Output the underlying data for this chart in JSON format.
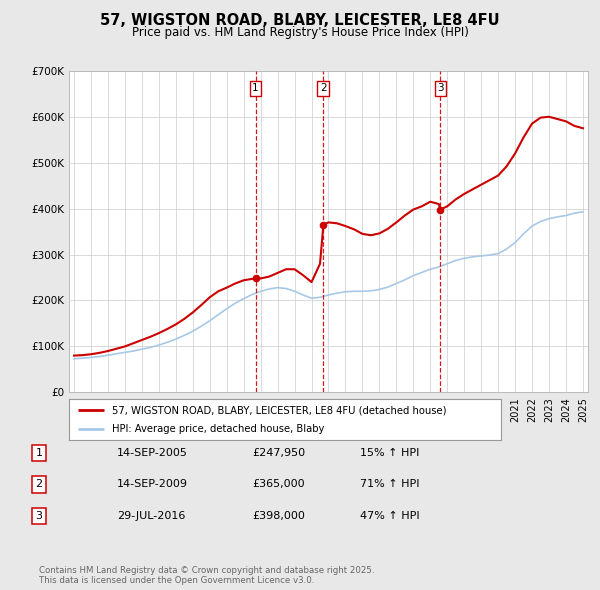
{
  "title": "57, WIGSTON ROAD, BLABY, LEICESTER, LE8 4FU",
  "subtitle": "Price paid vs. HM Land Registry's House Price Index (HPI)",
  "background_color": "#e8e8e8",
  "plot_bg_color": "#ffffff",
  "x_start_year": 1995,
  "x_end_year": 2025,
  "y_min": 0,
  "y_max": 700000,
  "y_ticks": [
    0,
    100000,
    200000,
    300000,
    400000,
    500000,
    600000,
    700000
  ],
  "y_tick_labels": [
    "£0",
    "£100K",
    "£200K",
    "£300K",
    "£400K",
    "£500K",
    "£600K",
    "£700K"
  ],
  "grid_color": "#cccccc",
  "hpi_line_color": "#a8c8e8",
  "price_line_color": "#cc0000",
  "vline_color": "#cc0000",
  "sale_markers": [
    {
      "year": 2005.7,
      "price": 247950,
      "label": "1"
    },
    {
      "year": 2009.7,
      "price": 365000,
      "label": "2"
    },
    {
      "year": 2016.6,
      "price": 398000,
      "label": "3"
    }
  ],
  "legend_entries": [
    {
      "label": "57, WIGSTON ROAD, BLABY, LEICESTER, LE8 4FU (detached house)",
      "color": "#cc0000"
    },
    {
      "label": "HPI: Average price, detached house, Blaby",
      "color": "#a8c8e8"
    }
  ],
  "table_rows": [
    {
      "num": "1",
      "date": "14-SEP-2005",
      "price": "£247,950",
      "hpi": "15% ↑ HPI"
    },
    {
      "num": "2",
      "date": "14-SEP-2009",
      "price": "£365,000",
      "hpi": "71% ↑ HPI"
    },
    {
      "num": "3",
      "date": "29-JUL-2016",
      "price": "£398,000",
      "hpi": "47% ↑ HPI"
    }
  ],
  "footer": "Contains HM Land Registry data © Crown copyright and database right 2025.\nThis data is licensed under the Open Government Licence v3.0.",
  "hpi_data": {
    "years": [
      1995.0,
      1995.5,
      1996.0,
      1996.5,
      1997.0,
      1997.5,
      1998.0,
      1998.5,
      1999.0,
      1999.5,
      2000.0,
      2000.5,
      2001.0,
      2001.5,
      2002.0,
      2002.5,
      2003.0,
      2003.5,
      2004.0,
      2004.5,
      2005.0,
      2005.5,
      2006.0,
      2006.5,
      2007.0,
      2007.5,
      2008.0,
      2008.5,
      2009.0,
      2009.5,
      2010.0,
      2010.5,
      2011.0,
      2011.5,
      2012.0,
      2012.5,
      2013.0,
      2013.5,
      2014.0,
      2014.5,
      2015.0,
      2015.5,
      2016.0,
      2016.5,
      2017.0,
      2017.5,
      2018.0,
      2018.5,
      2019.0,
      2019.5,
      2020.0,
      2020.5,
      2021.0,
      2021.5,
      2022.0,
      2022.5,
      2023.0,
      2023.5,
      2024.0,
      2024.5,
      2025.0
    ],
    "values": [
      73000,
      74500,
      76000,
      78000,
      81000,
      84000,
      87000,
      90000,
      94000,
      98000,
      103000,
      109000,
      116000,
      124000,
      133000,
      144000,
      156000,
      169000,
      182000,
      194000,
      204000,
      213000,
      220000,
      225000,
      228000,
      226000,
      220000,
      212000,
      205000,
      207000,
      212000,
      216000,
      219000,
      220000,
      220000,
      221000,
      224000,
      229000,
      237000,
      245000,
      254000,
      261000,
      268000,
      273000,
      280000,
      287000,
      292000,
      295000,
      297000,
      299000,
      302000,
      312000,
      326000,
      345000,
      362000,
      372000,
      378000,
      382000,
      385000,
      390000,
      393000
    ]
  },
  "price_data": {
    "years": [
      1995.0,
      1995.5,
      1996.0,
      1996.5,
      1997.0,
      1997.5,
      1998.0,
      1998.5,
      1999.0,
      1999.5,
      2000.0,
      2000.5,
      2001.0,
      2001.5,
      2002.0,
      2002.5,
      2003.0,
      2003.5,
      2004.0,
      2004.5,
      2005.0,
      2005.5,
      2005.7,
      2006.0,
      2006.5,
      2007.0,
      2007.5,
      2008.0,
      2008.5,
      2009.0,
      2009.5,
      2009.7,
      2010.0,
      2010.5,
      2011.0,
      2011.5,
      2012.0,
      2012.5,
      2013.0,
      2013.5,
      2014.0,
      2014.5,
      2015.0,
      2015.5,
      2016.0,
      2016.5,
      2016.6,
      2017.0,
      2017.5,
      2018.0,
      2018.5,
      2019.0,
      2019.5,
      2020.0,
      2020.5,
      2021.0,
      2021.5,
      2022.0,
      2022.5,
      2023.0,
      2023.5,
      2024.0,
      2024.5,
      2025.0
    ],
    "values": [
      80000,
      81000,
      83000,
      86000,
      90000,
      95000,
      100000,
      107000,
      114000,
      121000,
      129000,
      138000,
      148000,
      160000,
      174000,
      190000,
      207000,
      220000,
      228000,
      237000,
      244000,
      247000,
      247950,
      248000,
      252000,
      260000,
      268000,
      268000,
      255000,
      240000,
      280000,
      365000,
      370000,
      368000,
      362000,
      355000,
      345000,
      342000,
      346000,
      356000,
      370000,
      385000,
      398000,
      405000,
      415000,
      410000,
      398000,
      405000,
      420000,
      432000,
      442000,
      452000,
      462000,
      472000,
      492000,
      520000,
      555000,
      585000,
      598000,
      600000,
      595000,
      590000,
      580000,
      575000
    ]
  }
}
